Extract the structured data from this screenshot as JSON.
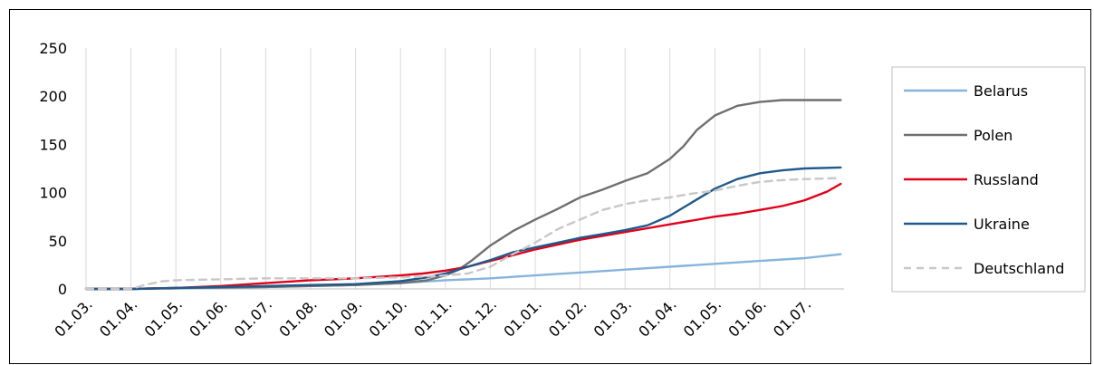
{
  "chart_data": {
    "type": "line",
    "title": "",
    "xlabel": "",
    "ylabel": "",
    "ylim": [
      0,
      250
    ],
    "yticks": [
      "0",
      "50",
      "100",
      "150",
      "200",
      "250"
    ],
    "grid": "vertical",
    "legend_position": "right",
    "categories": [
      "01.03.",
      "01.04.",
      "01.05.",
      "01.06.",
      "01.07.",
      "01.08.",
      "01.09.",
      "01.10.",
      "01.11.",
      "01.12.",
      "01.01.",
      "01.02.",
      "01.03.",
      "01.04.",
      "01.05.",
      "01.06.",
      "01.07."
    ],
    "series": [
      {
        "name": "Belarus",
        "color": "#86b4dc",
        "dash": "solid",
        "points": [
          [
            0,
            0
          ],
          [
            1,
            0
          ],
          [
            2,
            0.5
          ],
          [
            3,
            1
          ],
          [
            4,
            2
          ],
          [
            5,
            3
          ],
          [
            6,
            4
          ],
          [
            7,
            6
          ],
          [
            8,
            9
          ],
          [
            8.5,
            10
          ],
          [
            9,
            11
          ],
          [
            10,
            14
          ],
          [
            11,
            17
          ],
          [
            12,
            20
          ],
          [
            13,
            23
          ],
          [
            14,
            26
          ],
          [
            15,
            29
          ],
          [
            16,
            32
          ],
          [
            16.8,
            36
          ]
        ]
      },
      {
        "name": "Polen",
        "color": "#6f6f6f",
        "dash": "solid",
        "points": [
          [
            0,
            0
          ],
          [
            1,
            0
          ],
          [
            2,
            1
          ],
          [
            3,
            1.5
          ],
          [
            4,
            2
          ],
          [
            5,
            3
          ],
          [
            6,
            4
          ],
          [
            7,
            6
          ],
          [
            7.6,
            9
          ],
          [
            8,
            14
          ],
          [
            8.3,
            20
          ],
          [
            8.6,
            30
          ],
          [
            9,
            45
          ],
          [
            9.5,
            60
          ],
          [
            10,
            72
          ],
          [
            10.5,
            83
          ],
          [
            11,
            95
          ],
          [
            11.5,
            103
          ],
          [
            12,
            112
          ],
          [
            12.5,
            120
          ],
          [
            13,
            135
          ],
          [
            13.3,
            148
          ],
          [
            13.6,
            165
          ],
          [
            14,
            180
          ],
          [
            14.5,
            190
          ],
          [
            15,
            194
          ],
          [
            15.5,
            196
          ],
          [
            16,
            196
          ],
          [
            16.8,
            196
          ]
        ]
      },
      {
        "name": "Russland",
        "color": "#e2001a",
        "dash": "solid",
        "points": [
          [
            0,
            0
          ],
          [
            1,
            0
          ],
          [
            2,
            1
          ],
          [
            3,
            3
          ],
          [
            4,
            6
          ],
          [
            5,
            9
          ],
          [
            6,
            11
          ],
          [
            7,
            14
          ],
          [
            7.5,
            16
          ],
          [
            8,
            19
          ],
          [
            8.5,
            23
          ],
          [
            9,
            29
          ],
          [
            9.5,
            35
          ],
          [
            10,
            41
          ],
          [
            10.5,
            46
          ],
          [
            11,
            51
          ],
          [
            11.5,
            55
          ],
          [
            12,
            59
          ],
          [
            12.5,
            63
          ],
          [
            13,
            67
          ],
          [
            13.5,
            71
          ],
          [
            14,
            75
          ],
          [
            14.5,
            78
          ],
          [
            15,
            82
          ],
          [
            15.5,
            86
          ],
          [
            16,
            92
          ],
          [
            16.5,
            101
          ],
          [
            16.8,
            109
          ]
        ]
      },
      {
        "name": "Ukraine",
        "color": "#1f5a8a",
        "dash": "solid",
        "points": [
          [
            0,
            0
          ],
          [
            1,
            0
          ],
          [
            2,
            1
          ],
          [
            3,
            2
          ],
          [
            4,
            3
          ],
          [
            5,
            4
          ],
          [
            6,
            5
          ],
          [
            7,
            8
          ],
          [
            7.6,
            12
          ],
          [
            8,
            16
          ],
          [
            8.5,
            23
          ],
          [
            9,
            30
          ],
          [
            9.5,
            38
          ],
          [
            10,
            43
          ],
          [
            10.5,
            48
          ],
          [
            11,
            53
          ],
          [
            11.5,
            57
          ],
          [
            12,
            61
          ],
          [
            12.5,
            66
          ],
          [
            13,
            76
          ],
          [
            13.5,
            90
          ],
          [
            14,
            104
          ],
          [
            14.5,
            114
          ],
          [
            15,
            120
          ],
          [
            15.5,
            123
          ],
          [
            16,
            125
          ],
          [
            16.8,
            126
          ]
        ]
      },
      {
        "name": "Deutschland",
        "color": "#c8c8c8",
        "dash": "dashed",
        "points": [
          [
            0,
            0
          ],
          [
            1,
            0
          ],
          [
            1.3,
            4
          ],
          [
            1.7,
            8
          ],
          [
            2,
            9
          ],
          [
            3,
            10
          ],
          [
            4,
            11
          ],
          [
            5,
            11
          ],
          [
            6,
            11
          ],
          [
            7,
            12
          ],
          [
            7.6,
            13
          ],
          [
            8,
            14
          ],
          [
            8.5,
            16
          ],
          [
            9,
            23
          ],
          [
            9.5,
            36
          ],
          [
            10,
            48
          ],
          [
            10.5,
            62
          ],
          [
            11,
            72
          ],
          [
            11.5,
            82
          ],
          [
            12,
            88
          ],
          [
            12.5,
            92
          ],
          [
            13,
            95
          ],
          [
            13.5,
            99
          ],
          [
            14,
            102
          ],
          [
            14.5,
            107
          ],
          [
            15,
            111
          ],
          [
            15.5,
            113
          ],
          [
            16,
            114
          ],
          [
            16.8,
            115
          ]
        ]
      }
    ]
  }
}
